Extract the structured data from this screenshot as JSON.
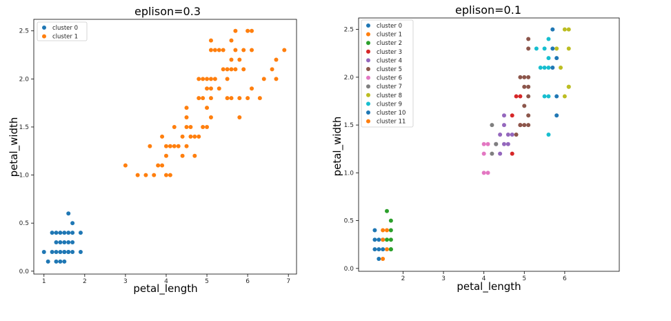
{
  "chart_data": [
    {
      "type": "scatter",
      "title": "eplison=0.3",
      "xlabel": "petal_length",
      "ylabel": "petal_width",
      "xlim": [
        0.75,
        7.2
      ],
      "ylim": [
        -0.03,
        2.62
      ],
      "xticks": [
        1,
        2,
        3,
        4,
        5,
        6,
        7
      ],
      "yticks": [
        0.0,
        0.5,
        1.0,
        1.5,
        2.0,
        2.5
      ],
      "xtick_labels": [
        "1",
        "2",
        "3",
        "4",
        "5",
        "6",
        "7"
      ],
      "ytick_labels": [
        "0.0",
        "0.5",
        "1.0",
        "1.5",
        "2.0",
        "2.5"
      ],
      "legend_position": "upper-left",
      "series": [
        {
          "name": "cluster 0",
          "color": "#1f77b4",
          "x": [
            1.0,
            1.1,
            1.2,
            1.2,
            1.3,
            1.3,
            1.3,
            1.3,
            1.4,
            1.4,
            1.4,
            1.4,
            1.5,
            1.5,
            1.5,
            1.5,
            1.5,
            1.6,
            1.6,
            1.6,
            1.6,
            1.6,
            1.7,
            1.7,
            1.7,
            1.7,
            1.9,
            1.9
          ],
          "y": [
            0.2,
            0.1,
            0.2,
            0.4,
            0.2,
            0.3,
            0.4,
            0.1,
            0.2,
            0.3,
            0.1,
            0.4,
            0.2,
            0.3,
            0.4,
            0.1,
            0.2,
            0.2,
            0.4,
            0.6,
            0.3,
            0.2,
            0.2,
            0.3,
            0.4,
            0.5,
            0.2,
            0.4
          ]
        },
        {
          "name": "cluster 1",
          "color": "#ff7f0e",
          "x": [
            3.0,
            3.3,
            3.5,
            3.6,
            3.7,
            3.8,
            3.9,
            3.9,
            4.0,
            4.0,
            4.0,
            4.1,
            4.1,
            4.2,
            4.2,
            4.3,
            4.4,
            4.4,
            4.5,
            4.5,
            4.5,
            4.5,
            4.6,
            4.6,
            4.7,
            4.7,
            4.8,
            4.8,
            4.8,
            4.9,
            4.9,
            4.9,
            5.0,
            5.0,
            5.0,
            5.0,
            5.1,
            5.1,
            5.1,
            5.1,
            5.1,
            5.1,
            5.2,
            5.2,
            5.3,
            5.3,
            5.4,
            5.4,
            5.5,
            5.5,
            5.5,
            5.6,
            5.6,
            5.6,
            5.6,
            5.7,
            5.7,
            5.7,
            5.8,
            5.8,
            5.8,
            5.9,
            5.9,
            6.0,
            6.0,
            6.1,
            6.1,
            6.1,
            6.3,
            6.4,
            6.6,
            6.7,
            6.7,
            6.9
          ],
          "y": [
            1.1,
            1.0,
            1.0,
            1.3,
            1.0,
            1.1,
            1.1,
            1.4,
            1.0,
            1.3,
            1.2,
            1.0,
            1.3,
            1.3,
            1.5,
            1.3,
            1.2,
            1.4,
            1.5,
            1.3,
            1.7,
            1.6,
            1.5,
            1.4,
            1.4,
            1.2,
            1.8,
            1.4,
            2.0,
            1.5,
            1.8,
            2.0,
            1.7,
            1.5,
            2.0,
            1.9,
            1.6,
            2.0,
            2.4,
            2.3,
            1.8,
            1.9,
            2.0,
            2.3,
            2.3,
            1.9,
            2.3,
            2.1,
            2.1,
            1.8,
            2.0,
            2.4,
            2.2,
            1.8,
            2.1,
            2.5,
            2.3,
            2.1,
            2.2,
            1.8,
            1.6,
            2.3,
            2.1,
            2.5,
            1.8,
            2.3,
            2.5,
            1.9,
            1.8,
            2.0,
            2.1,
            2.0,
            2.2,
            2.3
          ]
        }
      ]
    },
    {
      "type": "scatter",
      "title": "eplison=0.1",
      "xlabel": "petal_length",
      "ylabel": "petal_width",
      "xlim": [
        0.9,
        7.35
      ],
      "ylim": [
        -0.03,
        2.62
      ],
      "xticks": [
        2,
        3,
        4,
        5,
        6
      ],
      "yticks": [
        0.0,
        0.5,
        1.0,
        1.5,
        2.0,
        2.5
      ],
      "xtick_labels": [
        "2",
        "3",
        "4",
        "5",
        "6"
      ],
      "ytick_labels": [
        "0.0",
        "0.5",
        "1.0",
        "1.5",
        "2.0",
        "2.5"
      ],
      "legend_position": "upper-left",
      "series": [
        {
          "name": "cluster 0",
          "color": "#1f77b4",
          "x": [
            1.3,
            1.3,
            1.3,
            1.4,
            1.4,
            1.4,
            1.5,
            1.5
          ],
          "y": [
            0.2,
            0.3,
            0.4,
            0.1,
            0.2,
            0.3,
            0.2,
            0.3
          ]
        },
        {
          "name": "cluster 1",
          "color": "#ff7f0e",
          "x": [
            1.5,
            1.5,
            1.5,
            1.6,
            1.6
          ],
          "y": [
            0.1,
            0.3,
            0.4,
            0.2,
            0.4
          ]
        },
        {
          "name": "cluster 2",
          "color": "#2ca02c",
          "x": [
            1.6,
            1.6,
            1.7,
            1.7,
            1.7,
            1.7,
            1.7
          ],
          "y": [
            0.6,
            0.3,
            0.2,
            0.3,
            0.4,
            0.5,
            0.2
          ]
        },
        {
          "name": "cluster 3",
          "color": "#d62728",
          "x": [
            4.7,
            4.7,
            4.8,
            4.9,
            4.9
          ],
          "y": [
            1.2,
            1.6,
            1.8,
            1.8,
            1.5
          ]
        },
        {
          "name": "cluster 4",
          "color": "#9467bd",
          "x": [
            4.3,
            4.4,
            4.4,
            4.5,
            4.5,
            4.5,
            4.6,
            4.6,
            4.7
          ],
          "y": [
            1.3,
            1.2,
            1.4,
            1.5,
            1.3,
            1.6,
            1.4,
            1.3,
            1.4
          ]
        },
        {
          "name": "cluster 5",
          "color": "#8c564b",
          "x": [
            4.8,
            4.9,
            4.9,
            5.0,
            5.0,
            5.0,
            5.0,
            5.1,
            5.1,
            5.1,
            5.1,
            5.1,
            5.1,
            5.1
          ],
          "y": [
            1.4,
            1.5,
            2.0,
            1.5,
            1.9,
            2.0,
            1.7,
            1.5,
            1.6,
            1.9,
            2.0,
            1.8,
            2.3,
            2.4
          ]
        },
        {
          "name": "cluster 6",
          "color": "#e377c2",
          "x": [
            4.0,
            4.0,
            4.0,
            4.1,
            4.1
          ],
          "y": [
            1.0,
            1.2,
            1.3,
            1.0,
            1.3
          ]
        },
        {
          "name": "cluster 7",
          "color": "#7f7f7f",
          "x": [
            4.2,
            4.2,
            4.3
          ],
          "y": [
            1.5,
            1.2,
            1.3
          ]
        },
        {
          "name": "cluster 8",
          "color": "#bcbd22",
          "x": [
            5.9,
            6.0,
            6.0,
            6.1,
            6.1,
            6.1,
            6.1,
            5.8
          ],
          "y": [
            2.1,
            1.8,
            2.5,
            2.5,
            2.3,
            1.9,
            1.9,
            2.3
          ]
        },
        {
          "name": "cluster 9",
          "color": "#17becf",
          "x": [
            5.3,
            5.4,
            5.5,
            5.5,
            5.6,
            5.6,
            5.6,
            5.6,
            5.6,
            5.5
          ],
          "y": [
            2.3,
            2.1,
            1.8,
            2.1,
            2.4,
            2.2,
            2.1,
            1.8,
            1.4,
            2.3
          ]
        },
        {
          "name": "cluster 10",
          "color": "#1f77b4",
          "x": [
            5.7,
            5.7,
            5.7,
            5.8,
            5.8,
            5.8
          ],
          "y": [
            2.5,
            2.3,
            2.1,
            2.2,
            1.8,
            1.6
          ]
        },
        {
          "name": "cluster 11",
          "color": "#ff7f0e",
          "x": [],
          "y": []
        }
      ]
    }
  ]
}
